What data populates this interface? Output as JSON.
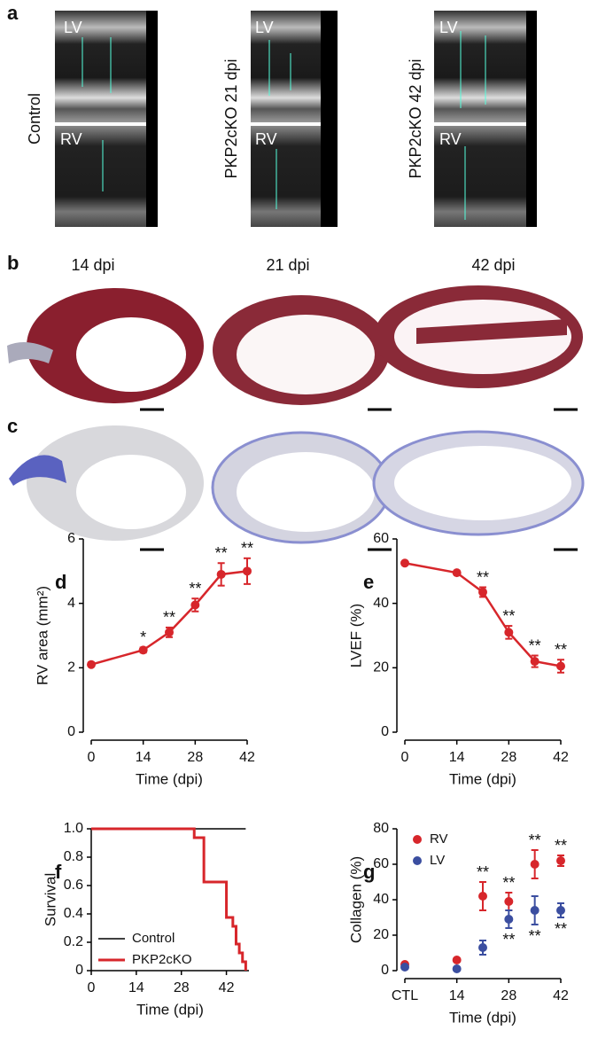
{
  "panel_a": {
    "label": "a",
    "rows": [
      "Control",
      "PKP2cKO 21 dpi",
      "PKP2cKO 42 dpi"
    ],
    "views": [
      "LV",
      "RV"
    ]
  },
  "panel_b": {
    "label": "b",
    "columns": [
      "14 dpi",
      "21 dpi",
      "42 dpi"
    ]
  },
  "panel_c": {
    "label": "c"
  },
  "chart_data": [
    {
      "type": "line",
      "panel": "d",
      "xlabel": "Time (dpi)",
      "ylabel": "RV area (mm²)",
      "x": [
        0,
        14,
        21,
        28,
        35,
        42
      ],
      "xlim": [
        0,
        42
      ],
      "xticks": [
        0,
        14,
        28,
        42
      ],
      "ylim": [
        0,
        6
      ],
      "yticks": [
        0,
        2,
        4,
        6
      ],
      "series": [
        {
          "color": "#d7262b",
          "values": [
            2.1,
            2.55,
            3.1,
            3.95,
            4.9,
            5.0
          ],
          "errors": [
            0.05,
            0.08,
            0.15,
            0.2,
            0.35,
            0.4
          ],
          "stars": [
            null,
            "*",
            "**",
            "**",
            "**",
            "**"
          ]
        }
      ]
    },
    {
      "type": "line",
      "panel": "e",
      "xlabel": "Time (dpi)",
      "ylabel": "LVEF (%)",
      "x": [
        0,
        14,
        21,
        28,
        35,
        42
      ],
      "xlim": [
        0,
        42
      ],
      "xticks": [
        0,
        14,
        28,
        42
      ],
      "ylim": [
        0,
        60
      ],
      "yticks": [
        0,
        20,
        40,
        60
      ],
      "series": [
        {
          "color": "#d7262b",
          "values": [
            52.5,
            49.5,
            43.5,
            31,
            22,
            20.5
          ],
          "errors": [
            0.5,
            0.5,
            1.5,
            2,
            1.8,
            2
          ],
          "stars": [
            null,
            null,
            "**",
            "**",
            "**",
            "**"
          ]
        }
      ]
    },
    {
      "type": "step",
      "panel": "f",
      "xlabel": "Time (dpi)",
      "ylabel": "Survival",
      "xlim": [
        0,
        49
      ],
      "xticks": [
        0,
        14,
        28,
        42
      ],
      "ylim": [
        0,
        1
      ],
      "yticks": [
        0,
        {
          "value": 0.2,
          "label": "0.2"
        },
        {
          "value": 0.4,
          "label": "0.4"
        },
        {
          "value": 0.6,
          "label": "0.6"
        },
        {
          "value": 0.8,
          "label": "0.8"
        },
        {
          "value": 1,
          "label": "1.0"
        }
      ],
      "legend": "lower left",
      "series": [
        {
          "name": "Control",
          "color": "#000000",
          "x": [
            0,
            48
          ],
          "values": [
            1,
            1
          ]
        },
        {
          "name": "PKP2cKO",
          "color": "#d7262b",
          "x": [
            0,
            32,
            35,
            42,
            44,
            45,
            46,
            47,
            48
          ],
          "values": [
            1,
            0.9375,
            0.625,
            0.375,
            0.3125,
            0.1875,
            0.125,
            0.0625,
            0
          ]
        }
      ]
    },
    {
      "type": "scatter",
      "panel": "g",
      "xlabel": "Time (dpi)",
      "ylabel": "Collagen (%)",
      "x": [
        0,
        14,
        21,
        28,
        35,
        42
      ],
      "xlim": [
        0,
        42
      ],
      "xticks": [
        {
          "value": 0,
          "label": "CTL"
        },
        14,
        28,
        42
      ],
      "ylim": [
        0,
        80
      ],
      "yticks": [
        0,
        20,
        40,
        60,
        80
      ],
      "legend": "upper left",
      "series": [
        {
          "name": "RV",
          "color": "#d7262b",
          "values": [
            3.5,
            6,
            42,
            39,
            60,
            62
          ],
          "errors": [
            1,
            1,
            8,
            5,
            8,
            3
          ],
          "stars": [
            null,
            null,
            "**",
            "**",
            "**",
            "**"
          ]
        },
        {
          "name": "LV",
          "color": "#3b4ea0",
          "values": [
            2,
            1,
            13,
            29,
            34,
            34
          ],
          "errors": [
            1,
            1,
            4,
            5,
            8,
            4
          ],
          "stars": [
            null,
            null,
            null,
            "**",
            "**",
            "**"
          ]
        }
      ]
    }
  ]
}
